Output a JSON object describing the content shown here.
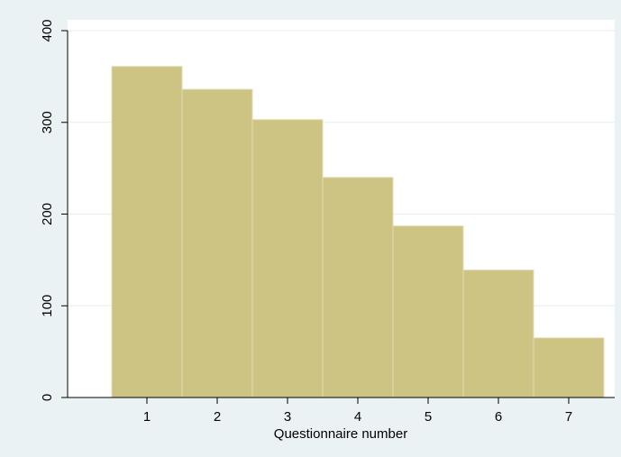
{
  "chart_data": {
    "type": "bar",
    "title": "",
    "xlabel": "Questionnaire number",
    "ylabel": "",
    "categories": [
      "1",
      "2",
      "3",
      "4",
      "5",
      "6",
      "7"
    ],
    "values": [
      361,
      336,
      303,
      240,
      187,
      139,
      65
    ],
    "ylim": [
      0,
      400
    ],
    "yticks": [
      "0",
      "100",
      "200",
      "300",
      "400"
    ],
    "grid": true,
    "legend": "none",
    "colors": {
      "background": "#eaf2f3",
      "plot_area": "#ffffff",
      "bar_fill": "#cdc383",
      "bar_edge": "#e3ddb4",
      "gridline": "#e6eeef",
      "axis": "#000000"
    }
  }
}
